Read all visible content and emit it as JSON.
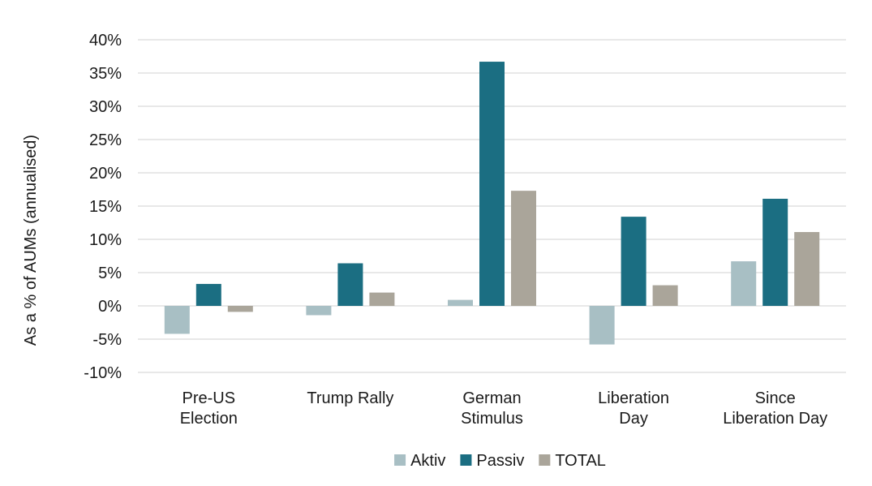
{
  "chart_data": {
    "type": "bar",
    "title": "",
    "xlabel": "",
    "ylabel": "As a % of AUMs (annualised)",
    "ylim": [
      -10,
      40
    ],
    "yticks": [
      -10,
      -5,
      0,
      5,
      10,
      15,
      20,
      25,
      30,
      35,
      40
    ],
    "ytick_labels": [
      "-10%",
      "-5%",
      "0%",
      "5%",
      "10%",
      "15%",
      "20%",
      "25%",
      "30%",
      "35%",
      "40%"
    ],
    "grid": true,
    "legend_position": "bottom-center",
    "categories": [
      [
        "Pre-US",
        "Election"
      ],
      [
        "Trump Rally"
      ],
      [
        "German",
        "Stimulus"
      ],
      [
        "Liberation",
        "Day"
      ],
      [
        "Since",
        "Liberation Day"
      ]
    ],
    "series": [
      {
        "name": "Aktiv",
        "color": "#a8bfc4",
        "values": [
          -4.2,
          -1.4,
          0.9,
          -5.8,
          6.7
        ]
      },
      {
        "name": "Passiv",
        "color": "#1b6e82",
        "values": [
          3.3,
          6.4,
          36.7,
          13.4,
          16.1
        ]
      },
      {
        "name": "TOTAL",
        "color": "#aaa59a",
        "values": [
          -0.9,
          2.0,
          17.3,
          3.1,
          11.1
        ]
      }
    ]
  }
}
